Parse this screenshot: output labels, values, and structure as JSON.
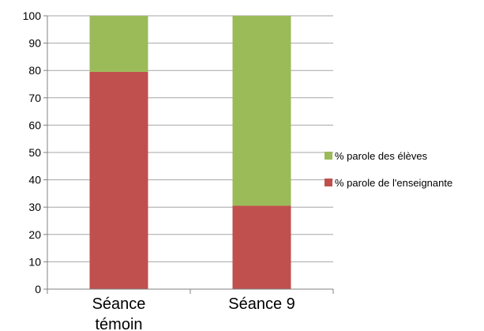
{
  "chart_data": {
    "type": "bar",
    "stacked": true,
    "categories": [
      "Séance témoin",
      "Séance 9"
    ],
    "category_lines": [
      [
        "Séance",
        "témoin"
      ],
      [
        "Séance 9"
      ]
    ],
    "series": [
      {
        "name": "% parole de l'enseignante",
        "values": [
          79.5,
          30.5
        ],
        "color": "#c0504d"
      },
      {
        "name": "% parole des élèves",
        "values": [
          20.5,
          69.5
        ],
        "color": "#9bbb59"
      }
    ],
    "ylim": [
      0,
      100
    ],
    "yticks": [
      0,
      10,
      20,
      30,
      40,
      50,
      60,
      70,
      80,
      90,
      100
    ],
    "grid": true,
    "legend_position": "right",
    "legend_order": [
      1,
      0
    ]
  }
}
